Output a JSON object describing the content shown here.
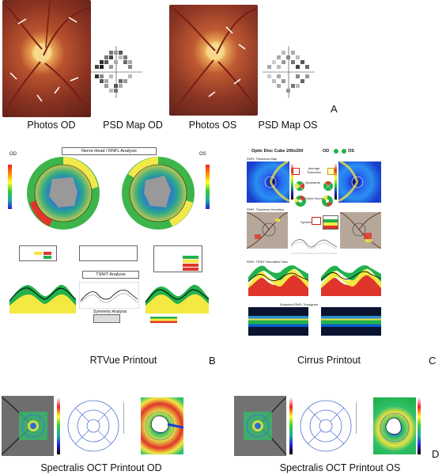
{
  "panel_a": {
    "letter": "A",
    "captions": [
      "Photos OD",
      "PSD Map OD",
      "Photos OS",
      "PSD Map OS"
    ]
  },
  "panel_b": {
    "letter": "B",
    "header": "Nerve Head / RNFL Analysis",
    "od": "OD",
    "os": "OS",
    "tsnit_header": "TSNIT Analysis",
    "symmetry": "Symmetry Analysis",
    "caption": "RTVue Printout"
  },
  "panel_c": {
    "letter": "C",
    "header": "Optic Disc Cube 200x200",
    "od": "OD",
    "os": "OS",
    "labels": [
      "RNFL Thickness Map",
      "Average Thickness",
      "Quadrants",
      "Clock Hours",
      "Symmetry",
      "RNFL Thickness Deviation",
      "RNFL TSNIT Normative Data",
      "Extracted RNFL Tomogram"
    ],
    "caption": "Cirrus Printout"
  },
  "panel_d": {
    "letter": "D",
    "caption_od": "Spectralis OCT Printout OD",
    "caption_os": "Spectralis OCT Printout OS"
  },
  "colors": {
    "fundus": "#a0442a",
    "disc": "#f2c060",
    "normal_green": "#22b14c",
    "border_yellow": "#f4e842",
    "abnormal_red": "#e0352b"
  }
}
